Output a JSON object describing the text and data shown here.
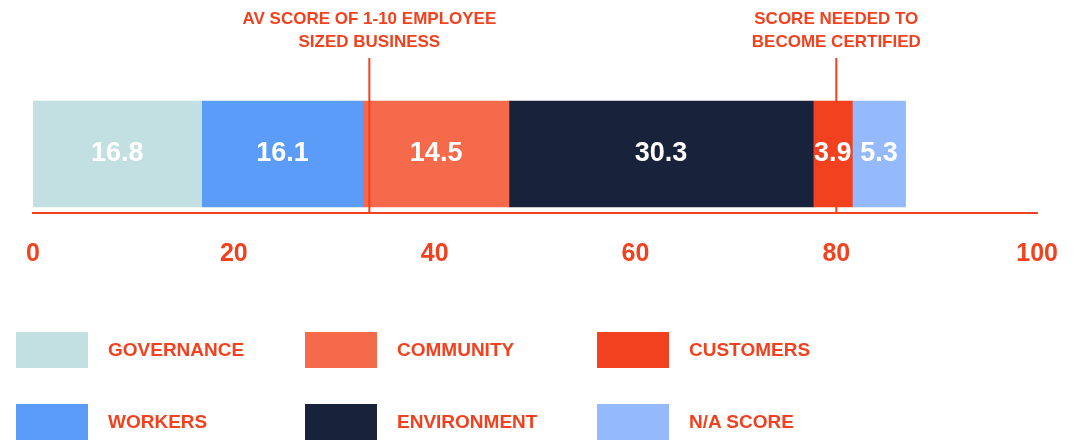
{
  "chart_data": {
    "type": "bar",
    "orientation": "horizontal",
    "stacked": true,
    "categories": [
      null
    ],
    "series": [
      {
        "name": "GOVERNANCE",
        "color": "#c2e0e2",
        "values": [
          16.8
        ]
      },
      {
        "name": "WORKERS",
        "color": "#5b9cf8",
        "values": [
          16.1
        ]
      },
      {
        "name": "COMMUNITY",
        "color": "#f56a4b",
        "values": [
          14.5
        ]
      },
      {
        "name": "ENVIRONMENT",
        "color": "#18223a",
        "values": [
          30.3
        ]
      },
      {
        "name": "CUSTOMERS",
        "color": "#f2411e",
        "values": [
          3.9
        ]
      },
      {
        "name": "N/A SCORE",
        "color": "#94bafd",
        "values": [
          5.3
        ]
      }
    ],
    "xlim": [
      0,
      100
    ],
    "xticks": [
      0,
      20,
      40,
      60,
      80,
      100
    ],
    "tick_labels": "x",
    "grid": false,
    "legend": "bottom",
    "data_labels": true,
    "ref_lines": [
      {
        "axis": "x",
        "value": 33.5,
        "label": "AV SCORE OF 1-10 EMPLOYEE\nSIZED BUSINESS",
        "color": "#f2411e"
      },
      {
        "axis": "x",
        "value": 80,
        "label": "SCORE NEEDED TO\nBECOME CERTIFIED",
        "color": "#f2411e"
      }
    ]
  }
}
